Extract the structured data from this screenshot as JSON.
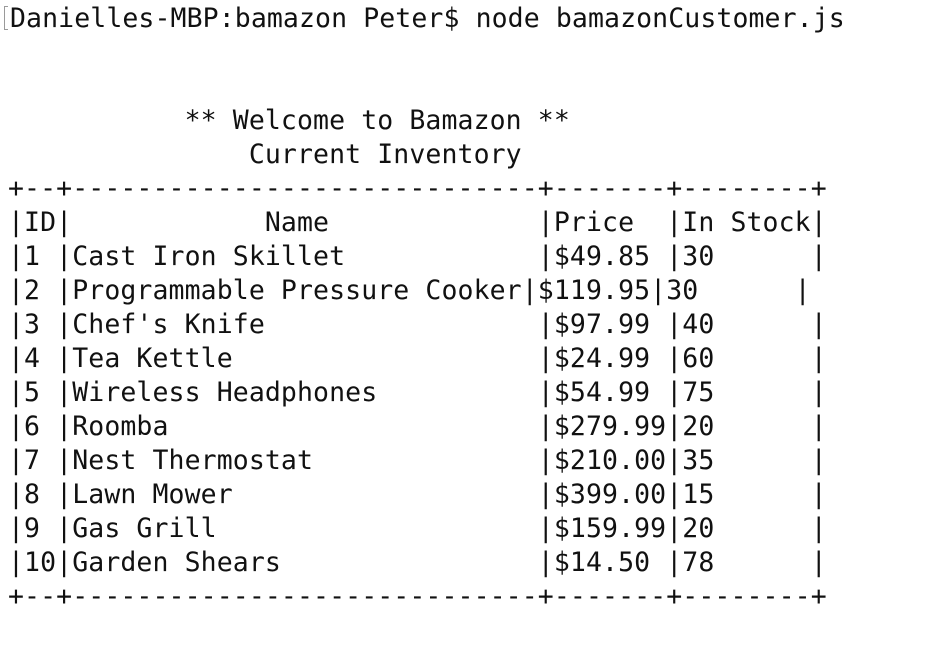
{
  "terminal": {
    "prompt": "Danielles-MBP:bamazon Peter$ node bamazonCustomer.js",
    "output_lines": [
      "           ** Welcome to Bamazon **",
      "               Current Inventory",
      "+--+-----------------------------+-------+--------+",
      "|ID|            Name             |Price  |In Stock|",
      "|1 |Cast Iron Skillet            |$49.85 |30      |",
      "|2 |Programmable Pressure Cooker|$119.95|30      |",
      "|3 |Chef's Knife                 |$97.99 |40      |",
      "|4 |Tea Kettle                   |$24.99 |60      |",
      "|5 |Wireless Headphones          |$54.99 |75      |",
      "|6 |Roomba                       |$279.99|20      |",
      "|7 |Nest Thermostat              |$210.00|35      |",
      "|8 |Lawn Mower                   |$399.00|15      |",
      "|9 |Gas Grill                    |$159.99|20      |",
      "|10|Garden Shears                |$14.50 |78      |",
      "+--+-----------------------------+-------+--------+"
    ]
  }
}
